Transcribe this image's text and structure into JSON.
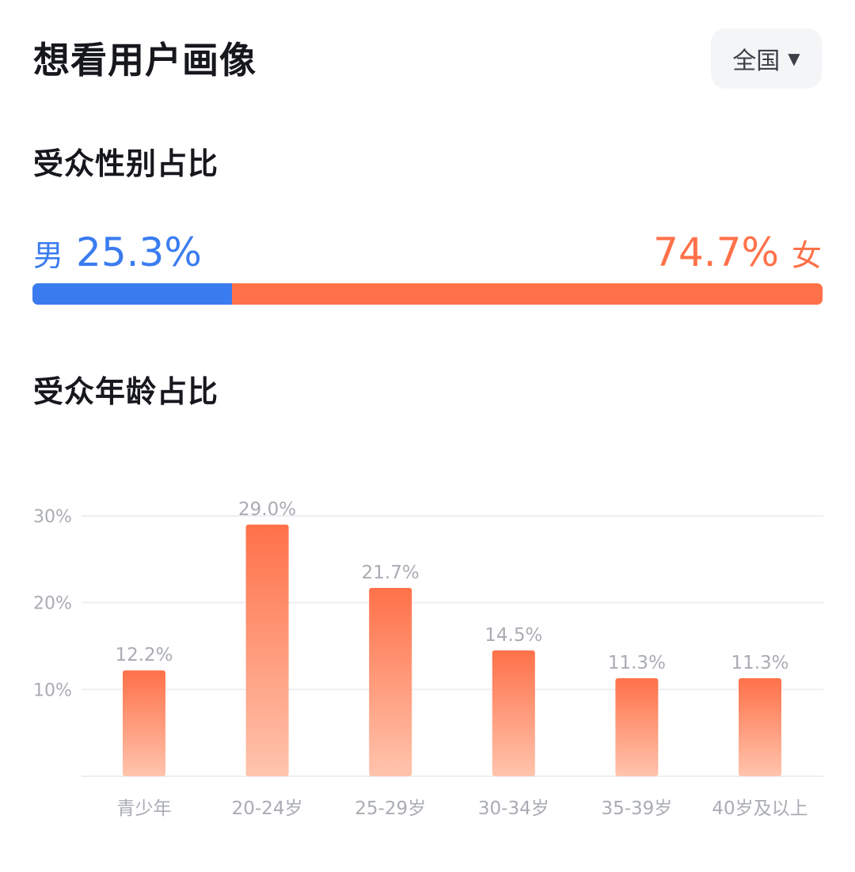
{
  "header": {
    "title": "想看用户画像",
    "region": "全国"
  },
  "gender": {
    "section_title": "受众性别占比",
    "male_label": "男",
    "male_value": "25.3%",
    "female_value": "74.7%",
    "female_label": "女",
    "male_fraction": 0.253,
    "colors": {
      "male": "#3a7cf0",
      "female": "#ff7149"
    }
  },
  "age": {
    "section_title": "受众年龄占比"
  },
  "chart_data": {
    "type": "bar",
    "categories": [
      "青少年",
      "20-24岁",
      "25-29岁",
      "30-34岁",
      "35-39岁",
      "40岁及以上"
    ],
    "values": [
      12.2,
      29.0,
      21.7,
      14.5,
      11.3,
      11.3
    ],
    "value_labels": [
      "12.2%",
      "29.0%",
      "21.7%",
      "14.5%",
      "11.3%",
      "11.3%"
    ],
    "yticks": [
      10,
      20,
      30
    ],
    "ytick_labels": [
      "10%",
      "20%",
      "30%"
    ],
    "ylim": [
      0,
      30
    ],
    "grid": true,
    "bar_color_top": "#ff7149",
    "bar_color_bottom": "#ffc4ad"
  }
}
